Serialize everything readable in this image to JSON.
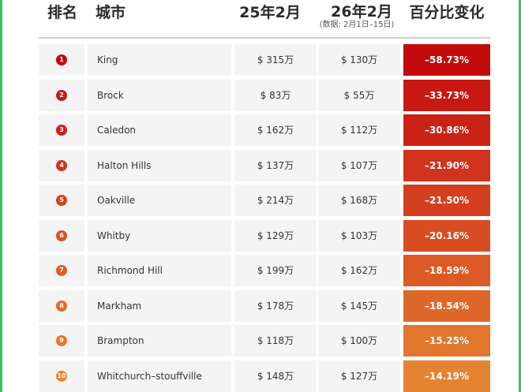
{
  "header": {
    "rank": "排名",
    "city": "城市",
    "feb25": "25年2月",
    "feb26": "26年2月",
    "feb26_note": "(数据: 2月1日–15日)",
    "change": "百分比变化"
  },
  "rows": [
    {
      "rank": "1",
      "city": "King",
      "feb25": "$ 315万",
      "feb26": "$ 130万",
      "change": "–58.73%",
      "change_color": "#c20a0a",
      "badge_color": "#c40a0a"
    },
    {
      "rank": "2",
      "city": "Brock",
      "feb25": "$ 83万",
      "feb26": "$ 55万",
      "change": "–33.73%",
      "change_color": "#c71812",
      "badge_color": "#c81a12"
    },
    {
      "rank": "3",
      "city": "Caledon",
      "feb25": "$ 162万",
      "feb26": "$ 112万",
      "change": "–30.86%",
      "change_color": "#cb2216",
      "badge_color": "#cc2416"
    },
    {
      "rank": "4",
      "city": "Halton Hills",
      "feb25": "$ 137万",
      "feb26": "$ 107万",
      "change": "–21.90%",
      "change_color": "#d0321c",
      "badge_color": "#d1341c"
    },
    {
      "rank": "5",
      "city": "Oakville",
      "feb25": "$ 214万",
      "feb26": "$ 168万",
      "change": "–21.50%",
      "change_color": "#d43f20",
      "badge_color": "#d54220"
    },
    {
      "rank": "6",
      "city": "Whitby",
      "feb25": "$ 129万",
      "feb26": "$ 103万",
      "change": "–20.16%",
      "change_color": "#d84d22",
      "badge_color": "#d95024"
    },
    {
      "rank": "7",
      "city": "Richmond Hill",
      "feb25": "$ 199万",
      "feb26": "$ 162万",
      "change": "–18.59%",
      "change_color": "#db5a26",
      "badge_color": "#dc5d27"
    },
    {
      "rank": "8",
      "city": "Markham",
      "feb25": "$ 178万",
      "feb26": "$ 145万",
      "change": "–18.54%",
      "change_color": "#de682a",
      "badge_color": "#df6b2b"
    },
    {
      "rank": "9",
      "city": "Brampton",
      "feb25": "$ 118万",
      "feb26": "$ 100万",
      "change": "–15.25%",
      "change_color": "#e1762d",
      "badge_color": "#e2792f"
    },
    {
      "rank": "10",
      "city": "Whitchurch–stouffville",
      "feb25": "$ 148万",
      "feb26": "$ 127万",
      "change": "–14.19%",
      "change_color": "#e48432",
      "badge_color": "#e58733"
    }
  ],
  "theme": {
    "frame_border": "#37c25a",
    "cell_bg": "#f4f4f4"
  }
}
